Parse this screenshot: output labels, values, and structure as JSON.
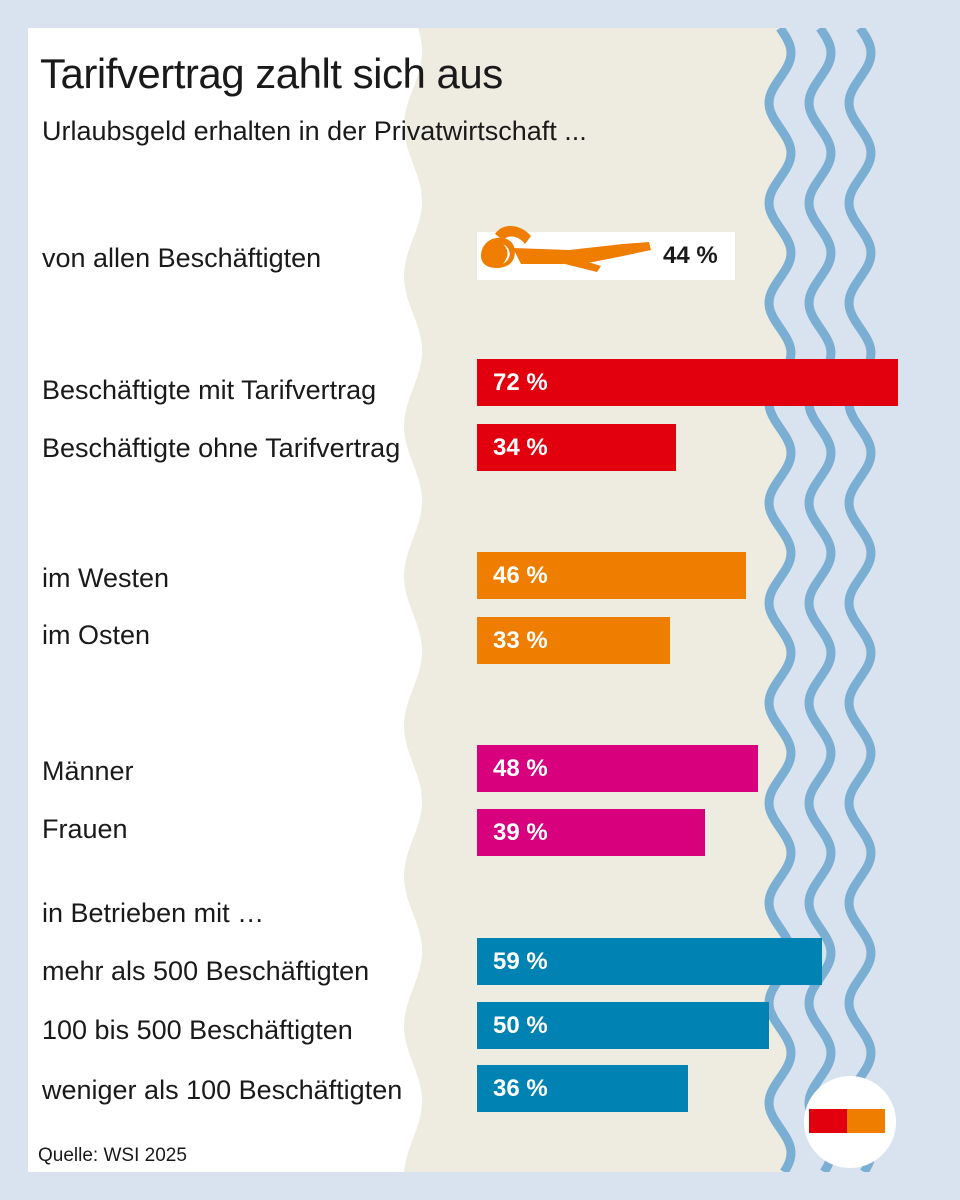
{
  "title": "Tarifvertrag zahlt sich aus",
  "subtitle": "Urlaubsgeld erhalten in der Privatwirtschaft ...",
  "source": "Quelle: WSI 2025",
  "group_heading": "in Betrieben mit …",
  "colors": {
    "tarif": "#e2000f",
    "region": "#ef7d00",
    "gender": "#d9007e",
    "size": "#0083b3",
    "sand": "#eeebe0",
    "water": "#7aaed3",
    "water_light": "#d8e3ef"
  },
  "icons": [
    "sunbathing-person-icon",
    "logo-icon"
  ],
  "chart_data": {
    "type": "bar",
    "orientation": "horizontal",
    "title": "Tarifvertrag zahlt sich aus",
    "subtitle": "Urlaubsgeld erhalten in der Privatwirtschaft ...",
    "unit": "%",
    "xlim": [
      0,
      72
    ],
    "series": [
      {
        "name": "von allen Beschäftigten",
        "value": 44,
        "label": "44 %",
        "group": "all"
      },
      {
        "name": "Beschäftigte mit Tarifvertrag",
        "value": 72,
        "label": "72 %",
        "group": "tarif"
      },
      {
        "name": "Beschäftigte ohne Tarifvertrag",
        "value": 34,
        "label": "34 %",
        "group": "tarif"
      },
      {
        "name": "im Westen",
        "value": 46,
        "label": "46 %",
        "group": "region"
      },
      {
        "name": "im Osten",
        "value": 33,
        "label": "33 %",
        "group": "region"
      },
      {
        "name": "Männer",
        "value": 48,
        "label": "48 %",
        "group": "gender"
      },
      {
        "name": "Frauen",
        "value": 39,
        "label": "39 %",
        "group": "gender"
      },
      {
        "name": "mehr als 500 Beschäftigten",
        "value": 59,
        "label": "59 %",
        "group": "size"
      },
      {
        "name": "100 bis 500 Beschäftigten",
        "value": 50,
        "label": "50 %",
        "group": "size"
      },
      {
        "name": "weniger als 100 Beschäftigten",
        "value": 36,
        "label": "36 %",
        "group": "size"
      }
    ]
  }
}
